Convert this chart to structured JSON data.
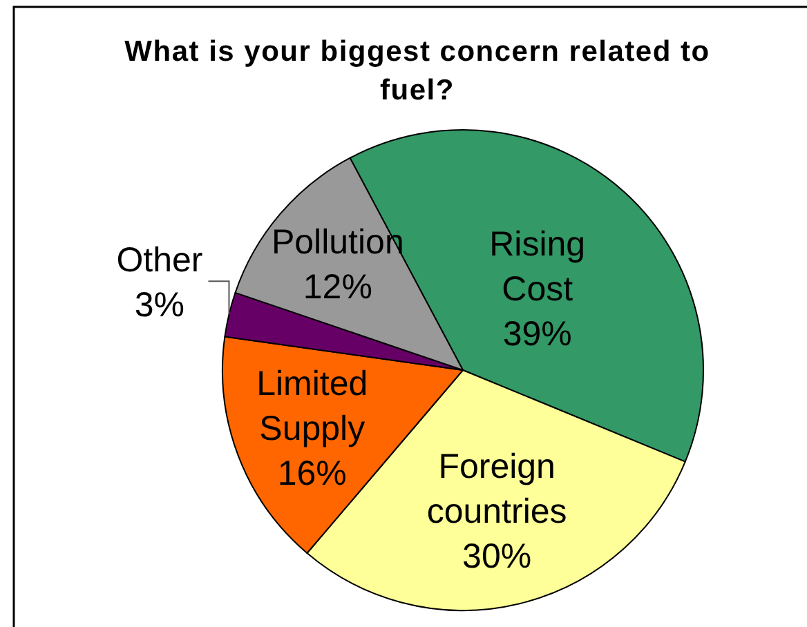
{
  "chart_data": {
    "type": "pie",
    "title": "What is your biggest concern related to fuel?",
    "categories": [
      "Rising Cost",
      "Foreign countries",
      "Limited Supply",
      "Other",
      "Pollution"
    ],
    "values": [
      39,
      30,
      16,
      3,
      12
    ],
    "colors": [
      "#339966",
      "#ffff99",
      "#ff6600",
      "#660066",
      "#999999"
    ],
    "value_labels": [
      "39%",
      "30%",
      "16%",
      "3%",
      "12%"
    ]
  }
}
